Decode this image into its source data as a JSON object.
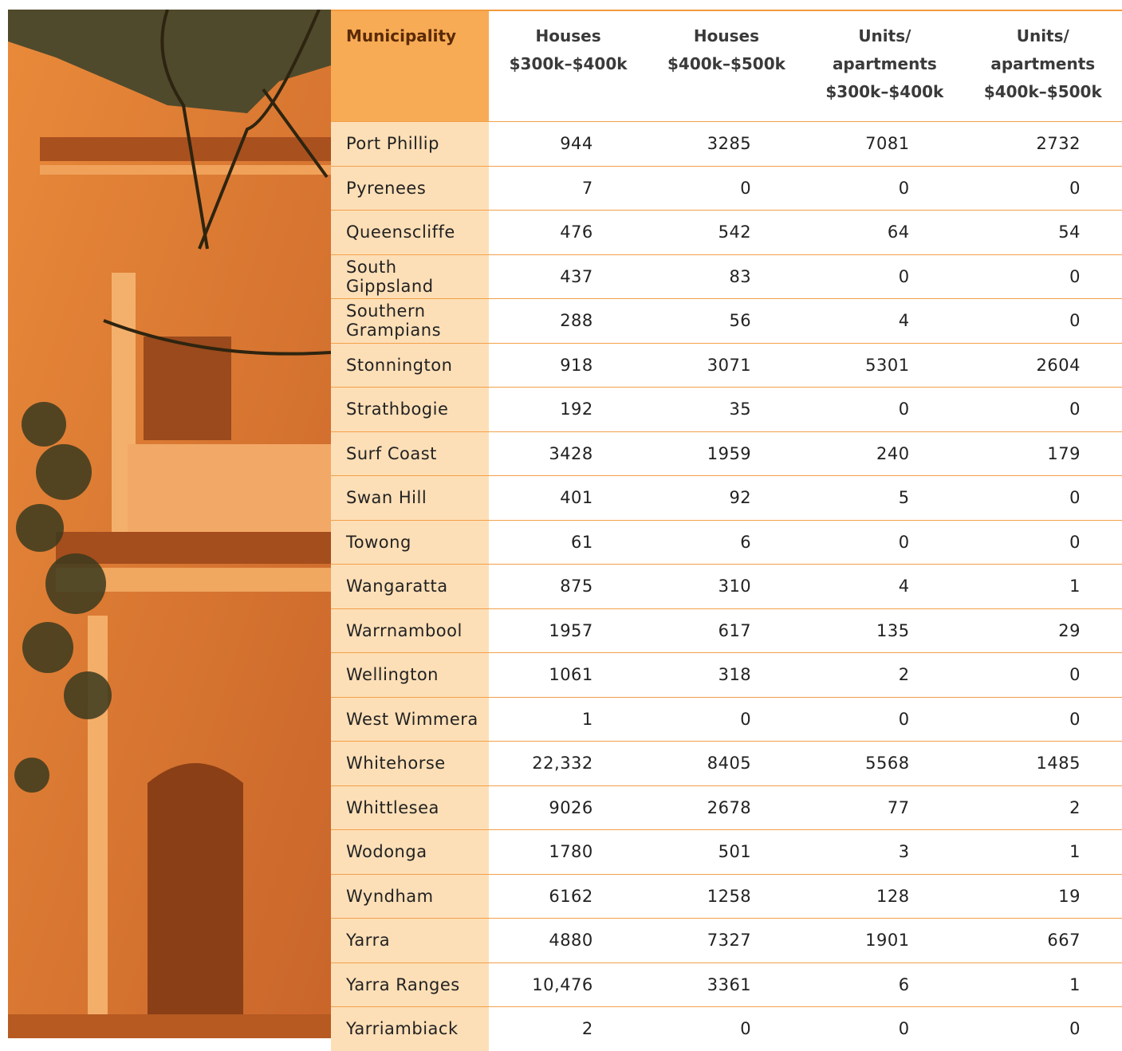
{
  "table": {
    "header": [
      [
        "Municipality"
      ],
      [
        "Houses",
        "$300k–$400k"
      ],
      [
        "Houses",
        "$400k–$500k"
      ],
      [
        "Units/",
        "apartments",
        "$300k–$400k"
      ],
      [
        "Units/",
        "apartments",
        "$400k–$500k"
      ]
    ],
    "rows": [
      [
        "Port Phillip",
        "944",
        "3285",
        "7081",
        "2732"
      ],
      [
        "Pyrenees",
        "7",
        "0",
        "0",
        "0"
      ],
      [
        "Queenscliffe",
        "476",
        "542",
        "64",
        "54"
      ],
      [
        "South Gippsland",
        "437",
        "83",
        "0",
        "0"
      ],
      [
        "Southern Grampians",
        "288",
        "56",
        "4",
        "0"
      ],
      [
        "Stonnington",
        "918",
        "3071",
        "5301",
        "2604"
      ],
      [
        "Strathbogie",
        "192",
        "35",
        "0",
        "0"
      ],
      [
        "Surf Coast",
        "3428",
        "1959",
        "240",
        "179"
      ],
      [
        "Swan Hill",
        "401",
        "92",
        "5",
        "0"
      ],
      [
        "Towong",
        "61",
        "6",
        "0",
        "0"
      ],
      [
        "Wangaratta",
        "875",
        "310",
        "4",
        "1"
      ],
      [
        "Warrnambool",
        "1957",
        "617",
        "135",
        "29"
      ],
      [
        "Wellington",
        "1061",
        "318",
        "2",
        "0"
      ],
      [
        "West Wimmera",
        "1",
        "0",
        "0",
        "0"
      ],
      [
        "Whitehorse",
        "22,332",
        "8405",
        "5568",
        "1485"
      ],
      [
        "Whittlesea",
        "9026",
        "2678",
        "77",
        "2"
      ],
      [
        "Wodonga",
        "1780",
        "501",
        "3",
        "1"
      ],
      [
        "Wyndham",
        "6162",
        "1258",
        "128",
        "19"
      ],
      [
        "Yarra",
        "4880",
        "7327",
        "1901",
        "667"
      ],
      [
        "Yarra Ranges",
        "10,476",
        "3361",
        "6",
        "1"
      ],
      [
        "Yarriambiack",
        "2",
        "0",
        "0",
        "0"
      ]
    ]
  }
}
